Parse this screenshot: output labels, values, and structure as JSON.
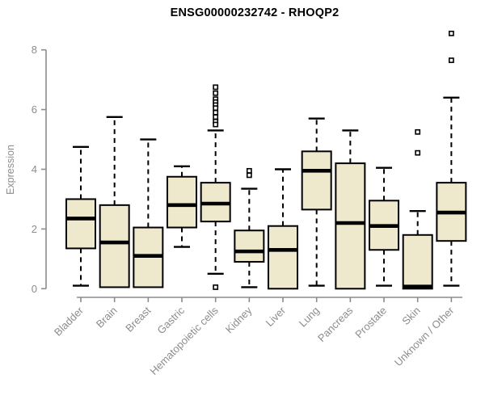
{
  "chart_data": {
    "type": "boxplot",
    "title": "ENSG00000232742 - RHOQP2",
    "ylabel": "Expression",
    "xlabel": "",
    "ylim": [
      0,
      8.6
    ],
    "yticks": [
      0,
      2,
      4,
      6,
      8
    ],
    "grid": false,
    "legend": "none",
    "colors": {
      "box_fill": "#EEE8CD",
      "box_stroke": "#000000",
      "median": "#000000",
      "whisker": "#000000",
      "axis": "#8c8c8c",
      "tick_label": "#8c8c8c",
      "title": "#000000"
    },
    "categories": [
      "Bladder",
      "Brain",
      "Breast",
      "Gastric",
      "Hematopoietic cells",
      "Kidney",
      "Liver",
      "Lung",
      "Pancreas",
      "Prostate",
      "Skin",
      "Unknown / Other"
    ],
    "boxes": [
      {
        "label": "Bladder",
        "whisker_low": 0.1,
        "q1": 1.35,
        "median": 2.35,
        "q3": 3.0,
        "whisker_high": 4.75,
        "outliers": []
      },
      {
        "label": "Brain",
        "whisker_low": 0.05,
        "q1": 0.05,
        "median": 1.55,
        "q3": 2.8,
        "whisker_high": 5.75,
        "outliers": []
      },
      {
        "label": "Breast",
        "whisker_low": 0.05,
        "q1": 0.05,
        "median": 1.1,
        "q3": 2.05,
        "whisker_high": 5.0,
        "outliers": []
      },
      {
        "label": "Gastric",
        "whisker_low": 1.4,
        "q1": 2.05,
        "median": 2.8,
        "q3": 3.75,
        "whisker_high": 4.1,
        "outliers": []
      },
      {
        "label": "Hematopoietic cells",
        "whisker_low": 0.5,
        "q1": 2.25,
        "median": 2.85,
        "q3": 3.55,
        "whisker_high": 5.3,
        "outliers": [
          6.75,
          6.55,
          6.35,
          6.25,
          6.15,
          6.05,
          5.9,
          5.75,
          5.6,
          5.5,
          0.05
        ]
      },
      {
        "label": "Kidney",
        "whisker_low": 0.05,
        "q1": 0.9,
        "median": 1.25,
        "q3": 1.95,
        "whisker_high": 3.35,
        "outliers": [
          3.95,
          3.8
        ]
      },
      {
        "label": "Liver",
        "whisker_low": 0.0,
        "q1": 0.0,
        "median": 1.3,
        "q3": 2.1,
        "whisker_high": 4.0,
        "outliers": []
      },
      {
        "label": "Lung",
        "whisker_low": 0.1,
        "q1": 2.65,
        "median": 3.95,
        "q3": 4.6,
        "whisker_high": 5.7,
        "outliers": []
      },
      {
        "label": "Pancreas",
        "whisker_low": 0.0,
        "q1": 0.0,
        "median": 2.2,
        "q3": 4.2,
        "whisker_high": 5.3,
        "outliers": []
      },
      {
        "label": "Prostate",
        "whisker_low": 0.1,
        "q1": 1.3,
        "median": 2.1,
        "q3": 2.95,
        "whisker_high": 4.05,
        "outliers": []
      },
      {
        "label": "Skin",
        "whisker_low": 0.0,
        "q1": 0.0,
        "median": 0.07,
        "q3": 1.8,
        "whisker_high": 2.6,
        "outliers": [
          5.25,
          4.55
        ]
      },
      {
        "label": "Unknown / Other",
        "whisker_low": 0.1,
        "q1": 1.6,
        "median": 2.55,
        "q3": 3.55,
        "whisker_high": 6.4,
        "outliers": [
          8.55,
          7.65
        ]
      }
    ]
  }
}
